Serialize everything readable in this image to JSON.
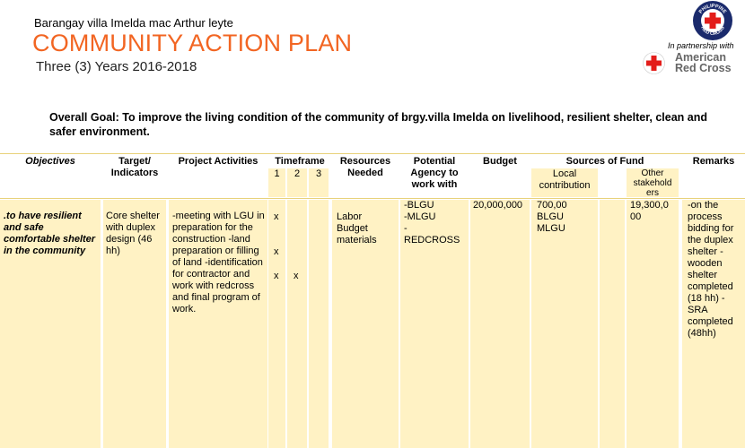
{
  "header": {
    "barangay": "Barangay villa Imelda mac Arthur leyte",
    "title": "COMMUNITY ACTION PLAN",
    "years": "Three (3) Years 2016-2018"
  },
  "logos": {
    "prc_top_text": "PHILIPPINE",
    "prc_bottom_text": "RED CROSS",
    "partnership_text": "In partnership with",
    "arc_line1": "American",
    "arc_line2": "Red Cross"
  },
  "goal": "Overall Goal: To improve the living condition of the community of brgy.villa Imelda on livelihood, resilient shelter, clean and safer environment.",
  "table": {
    "headers": {
      "objectives": "Objectives",
      "target": "Target/ Indicators",
      "activities": "Project Activities",
      "timeframe": "Timeframe",
      "tf1": "1",
      "tf2": "2",
      "tf3": "3",
      "resources": "Resources Needed",
      "agency": "Potential Agency to work with",
      "budget": "Budget",
      "sources": "Sources of Fund",
      "local": "Local contribution",
      "other": "Other stakehold ers",
      "remarks": "Remarks"
    },
    "row": {
      "objective": ".to have resilient and safe comfortable shelter in the community",
      "target": "Core shelter with duplex design (46 hh)",
      "activities": "-meeting with LGU in preparation for the construction -land preparation or filling of land -identification for contractor and work with redcross and final program of work.",
      "tf1_marks": [
        "x",
        "x",
        "x"
      ],
      "tf2_marks": [
        "x"
      ],
      "resources": [
        "Labor",
        "Budget",
        "materials"
      ],
      "agency": [
        "-BLGU",
        "-MLGU",
        "-",
        "REDCROSS"
      ],
      "budget": "20,000,000",
      "local": [
        "700,00",
        "BLGU",
        "MLGU"
      ],
      "other": "19,300,0 00",
      "remarks": "-on the process bidding for the duplex shelter -wooden shelter completed (18 hh) -SRA completed (48hh)"
    }
  },
  "colors": {
    "title_orange": "#f26522",
    "cell_fill": "#fff2c4",
    "rule_line": "#e8d27a",
    "red_cross": "#e31d1a",
    "prc_navy": "#1a2a6c"
  }
}
